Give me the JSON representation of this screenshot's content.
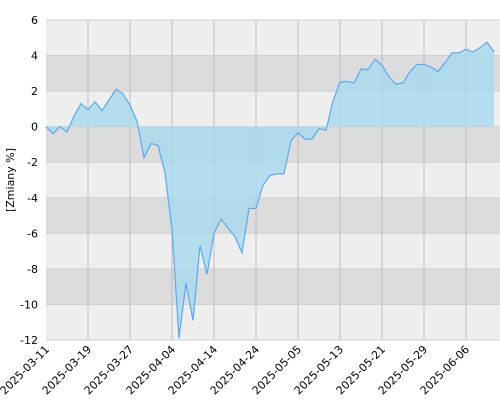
{
  "chart_data": {
    "type": "area",
    "y_label": "[Zmiany %]",
    "categories": [
      "2025-03-11",
      null,
      null,
      null,
      null,
      null,
      "2025-03-19",
      null,
      null,
      null,
      null,
      null,
      "2025-03-27",
      null,
      null,
      null,
      null,
      null,
      "2025-04-04",
      null,
      null,
      null,
      null,
      null,
      "2025-04-14",
      null,
      null,
      null,
      null,
      null,
      "2025-04-24",
      null,
      null,
      null,
      null,
      null,
      "2025-05-05",
      null,
      null,
      null,
      null,
      null,
      "2025-05-13",
      null,
      null,
      null,
      null,
      null,
      "2025-05-21",
      null,
      null,
      null,
      null,
      null,
      "2025-05-29",
      null,
      null,
      null,
      null,
      null,
      "2025-06-06",
      null,
      null,
      null,
      null
    ],
    "series": [
      {
        "color": "#5aaaf0",
        "fill": "#a9d9ec",
        "values": [
          0,
          -0.4,
          0,
          -0.3,
          0.6,
          1.3,
          0.95,
          1.4,
          0.9,
          1.5,
          2.1,
          1.85,
          1.2,
          0.3,
          -1.75,
          -0.95,
          -1.05,
          -2.6,
          -5.8,
          -11.9,
          -8.8,
          -10.9,
          -6.7,
          -8.3,
          -6.0,
          -5.2,
          -5.7,
          -6.2,
          -7.1,
          -4.6,
          -4.6,
          -3.3,
          -2.75,
          -2.65,
          -2.65,
          -0.8,
          -0.35,
          -0.7,
          -0.7,
          -0.1,
          -0.2,
          1.45,
          2.5,
          2.55,
          2.45,
          3.25,
          3.2,
          3.8,
          3.45,
          2.8,
          2.4,
          2.45,
          3.1,
          3.5,
          3.5,
          3.35,
          3.1,
          3.6,
          4.15,
          4.15,
          4.35,
          4.2,
          4.45,
          4.75,
          4.2
        ]
      }
    ],
    "ylim": [
      -12,
      6
    ],
    "yticks": [
      -12,
      -10,
      -8,
      -6,
      -4,
      -2,
      0,
      2,
      4,
      6
    ],
    "grid": true
  }
}
